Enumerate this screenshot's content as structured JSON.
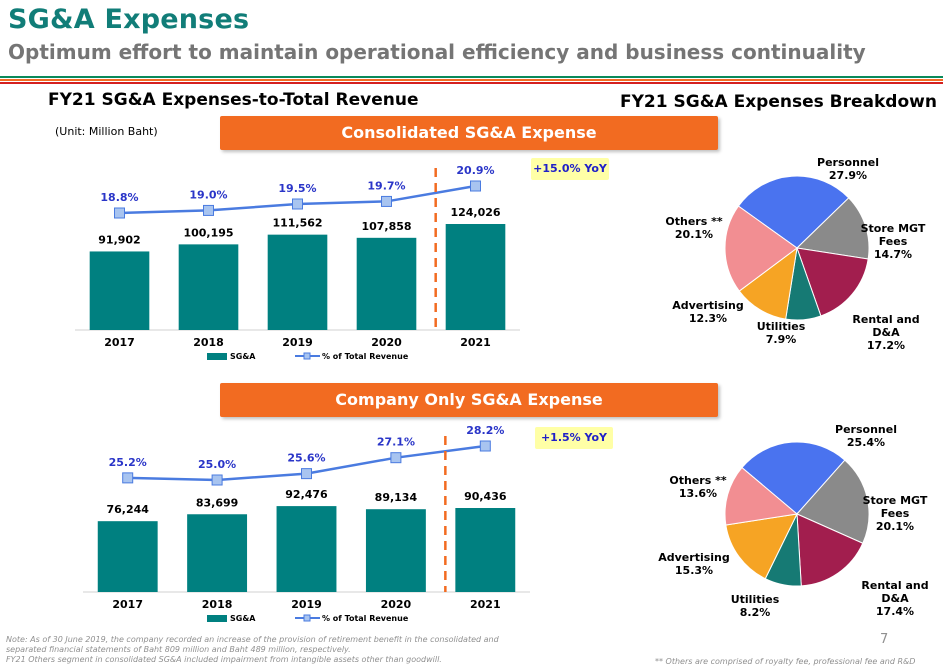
{
  "header": {
    "title": "SG&A Expenses",
    "subtitle": "Optimum effort to maintain operational efficiency and business continuality"
  },
  "left_heading": "FY21 SG&A Expenses-to-Total Revenue",
  "right_heading": "FY21 SG&A Expenses Breakdown",
  "unit": "(Unit:  Million Baht)",
  "banners": {
    "consolidated": "Consolidated SG&A Expense",
    "company": "Company Only SG&A Expense"
  },
  "yoy": {
    "consolidated": "+15.0% YoY",
    "company": "+1.5% YoY"
  },
  "colors": {
    "bar": "#008080",
    "line": "#4a7be0",
    "marker": "#a8c4f0",
    "banner": "#f26b21",
    "dash": "#f26b21",
    "title": "#117d78"
  },
  "chart_data": [
    {
      "type": "bar",
      "name_id": "consolidated",
      "categories": [
        "2017",
        "2018",
        "2019",
        "2020",
        "2021"
      ],
      "series": [
        {
          "name": "SG&A",
          "type": "bar",
          "values": [
            91902,
            100195,
            111562,
            107858,
            124026
          ],
          "labels": [
            "91,902",
            "100,195",
            "111,562",
            "107,858",
            "124,026"
          ]
        },
        {
          "name": "% of Total Revenue",
          "type": "line",
          "values": [
            18.8,
            19.0,
            19.5,
            19.7,
            20.9
          ],
          "labels": [
            "18.8%",
            "19.0%",
            "19.5%",
            "19.7%",
            "20.9%"
          ]
        }
      ],
      "legend": "bottom"
    },
    {
      "type": "bar",
      "name_id": "company",
      "categories": [
        "2017",
        "2018",
        "2019",
        "2020",
        "2021"
      ],
      "series": [
        {
          "name": "SG&A",
          "type": "bar",
          "values": [
            76244,
            83699,
            92476,
            89134,
            90436
          ],
          "labels": [
            "76,244",
            "83,699",
            "92,476",
            "89,134",
            "90,436"
          ]
        },
        {
          "name": "% of Total Revenue",
          "type": "line",
          "values": [
            25.2,
            25.0,
            25.6,
            27.1,
            28.2
          ],
          "labels": [
            "25.2%",
            "25.0%",
            "25.6%",
            "27.1%",
            "28.2%"
          ]
        }
      ],
      "legend": "bottom"
    },
    {
      "type": "pie",
      "name_id": "consolidated-pie",
      "slices": [
        {
          "label": "Personnel",
          "pct": "27.9%",
          "value": 27.9,
          "color": "#4a73ef"
        },
        {
          "label": "Store MGT Fees",
          "pct": "14.7%",
          "value": 14.7,
          "color": "#8a8a8a"
        },
        {
          "label": "Rental and D&A",
          "pct": "17.2%",
          "value": 17.2,
          "color": "#a21e4e"
        },
        {
          "label": "Utilities",
          "pct": "7.9%",
          "value": 7.9,
          "color": "#167a74"
        },
        {
          "label": "Advertising",
          "pct": "12.3%",
          "value": 12.3,
          "color": "#f6a424"
        },
        {
          "label": "Others **",
          "pct": "20.1%",
          "value": 20.1,
          "color": "#f28e92"
        }
      ]
    },
    {
      "type": "pie",
      "name_id": "company-pie",
      "slices": [
        {
          "label": "Personnel",
          "pct": "25.4%",
          "value": 25.4,
          "color": "#4a73ef"
        },
        {
          "label": "Store MGT Fees",
          "pct": "20.1%",
          "value": 20.1,
          "color": "#8a8a8a"
        },
        {
          "label": "Rental and D&A",
          "pct": "17.4%",
          "value": 17.4,
          "color": "#a21e4e"
        },
        {
          "label": "Utilities",
          "pct": "8.2%",
          "value": 8.2,
          "color": "#167a74"
        },
        {
          "label": "Advertising",
          "pct": "15.3%",
          "value": 15.3,
          "color": "#f6a424"
        },
        {
          "label": "Others **",
          "pct": "13.6%",
          "value": 13.6,
          "color": "#f28e92"
        }
      ]
    }
  ],
  "footnote_lines": [
    "Note: As of 30 June 2019, the company recorded an increase of the provision of retirement benefit in the consolidated and",
    "separated financial statements of Baht 809 million and Baht 489 million, respectively.",
    "FY21 Others segment in consolidated SG&A included impairment from intangible assets other than goodwill."
  ],
  "footnote_right": "** Others are comprised of royalty fee, professional fee and R&D",
  "page_number": "7"
}
